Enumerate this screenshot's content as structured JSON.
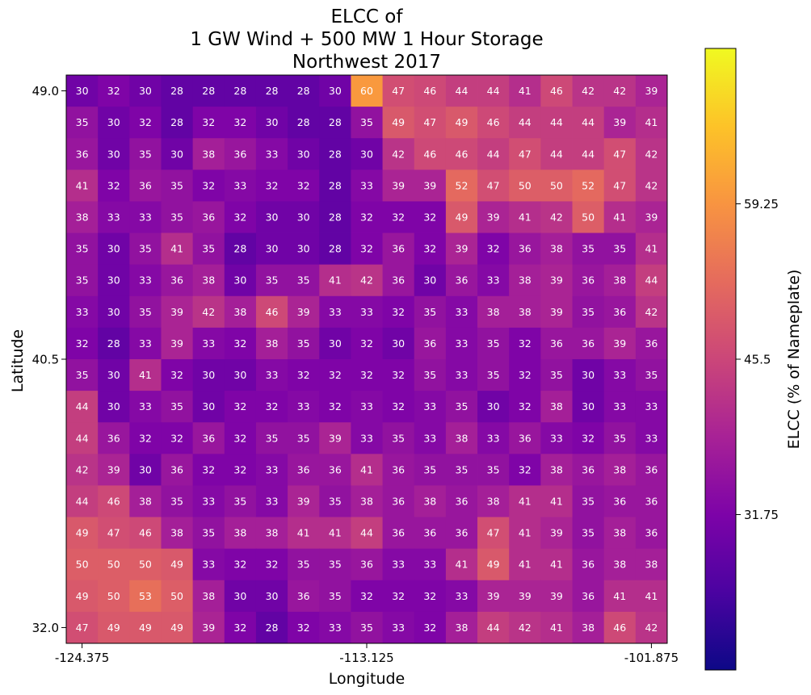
{
  "chart_data": {
    "type": "heatmap",
    "title": [
      "ELCC of",
      "1 GW Wind + 500 MW 1 Hour Storage",
      "Northwest 2017"
    ],
    "xlabel": "Longitude",
    "ylabel": "Latitude",
    "colorbar_label": "ELCC (% of Nameplate)",
    "colormap": "plasma",
    "x_ticks": [
      "-124.375",
      "-113.125",
      "-101.875"
    ],
    "y_ticks": [
      "49.0",
      "40.5",
      "32.0"
    ],
    "colorbar_ticks": [
      "59.25",
      "45.5",
      "31.75"
    ],
    "value_range": [
      18,
      73
    ],
    "rows": [
      [
        30,
        32,
        30,
        28,
        28,
        28,
        28,
        28,
        30,
        60,
        47,
        46,
        44,
        44,
        41,
        46,
        42,
        42,
        39
      ],
      [
        35,
        30,
        32,
        28,
        32,
        32,
        30,
        28,
        28,
        35,
        49,
        47,
        49,
        46,
        44,
        44,
        44,
        39,
        41
      ],
      [
        36,
        30,
        35,
        30,
        38,
        36,
        33,
        30,
        28,
        30,
        42,
        46,
        46,
        44,
        47,
        44,
        44,
        47,
        42
      ],
      [
        41,
        32,
        36,
        35,
        32,
        33,
        32,
        32,
        28,
        33,
        39,
        39,
        52,
        47,
        50,
        50,
        52,
        47,
        42
      ],
      [
        38,
        33,
        33,
        35,
        36,
        32,
        30,
        30,
        28,
        32,
        32,
        32,
        49,
        39,
        41,
        42,
        50,
        41,
        39
      ],
      [
        35,
        30,
        35,
        41,
        35,
        28,
        30,
        30,
        28,
        32,
        36,
        32,
        39,
        32,
        36,
        38,
        35,
        35,
        41
      ],
      [
        35,
        30,
        33,
        36,
        38,
        30,
        35,
        35,
        41,
        42,
        36,
        30,
        36,
        33,
        38,
        39,
        36,
        38,
        44
      ],
      [
        33,
        30,
        35,
        39,
        42,
        38,
        46,
        39,
        33,
        33,
        32,
        35,
        33,
        38,
        38,
        39,
        35,
        36,
        42
      ],
      [
        32,
        28,
        33,
        39,
        33,
        32,
        38,
        35,
        30,
        32,
        30,
        36,
        33,
        35,
        32,
        36,
        36,
        39,
        36
      ],
      [
        35,
        30,
        41,
        32,
        30,
        30,
        33,
        32,
        32,
        32,
        32,
        35,
        33,
        35,
        32,
        35,
        30,
        33,
        35
      ],
      [
        44,
        30,
        33,
        35,
        30,
        32,
        32,
        33,
        32,
        33,
        32,
        33,
        35,
        30,
        32,
        38,
        30,
        33,
        33
      ],
      [
        44,
        36,
        32,
        32,
        36,
        32,
        35,
        35,
        39,
        33,
        35,
        33,
        38,
        33,
        36,
        33,
        32,
        35,
        33
      ],
      [
        42,
        39,
        30,
        36,
        32,
        32,
        33,
        36,
        36,
        41,
        36,
        35,
        35,
        35,
        32,
        38,
        36,
        38,
        36
      ],
      [
        44,
        46,
        38,
        35,
        33,
        35,
        33,
        39,
        35,
        38,
        36,
        38,
        36,
        38,
        41,
        41,
        35,
        36,
        36
      ],
      [
        49,
        47,
        46,
        38,
        35,
        38,
        38,
        41,
        41,
        44,
        36,
        36,
        36,
        47,
        41,
        39,
        35,
        38,
        36
      ],
      [
        50,
        50,
        50,
        49,
        33,
        32,
        32,
        35,
        35,
        36,
        33,
        33,
        41,
        49,
        41,
        41,
        36,
        38,
        38
      ],
      [
        49,
        50,
        53,
        50,
        38,
        30,
        30,
        36,
        35,
        32,
        32,
        32,
        33,
        39,
        39,
        39,
        36,
        41,
        41
      ],
      [
        47,
        49,
        49,
        49,
        39,
        32,
        28,
        32,
        33,
        35,
        33,
        32,
        38,
        44,
        42,
        41,
        38,
        46,
        42
      ]
    ]
  }
}
